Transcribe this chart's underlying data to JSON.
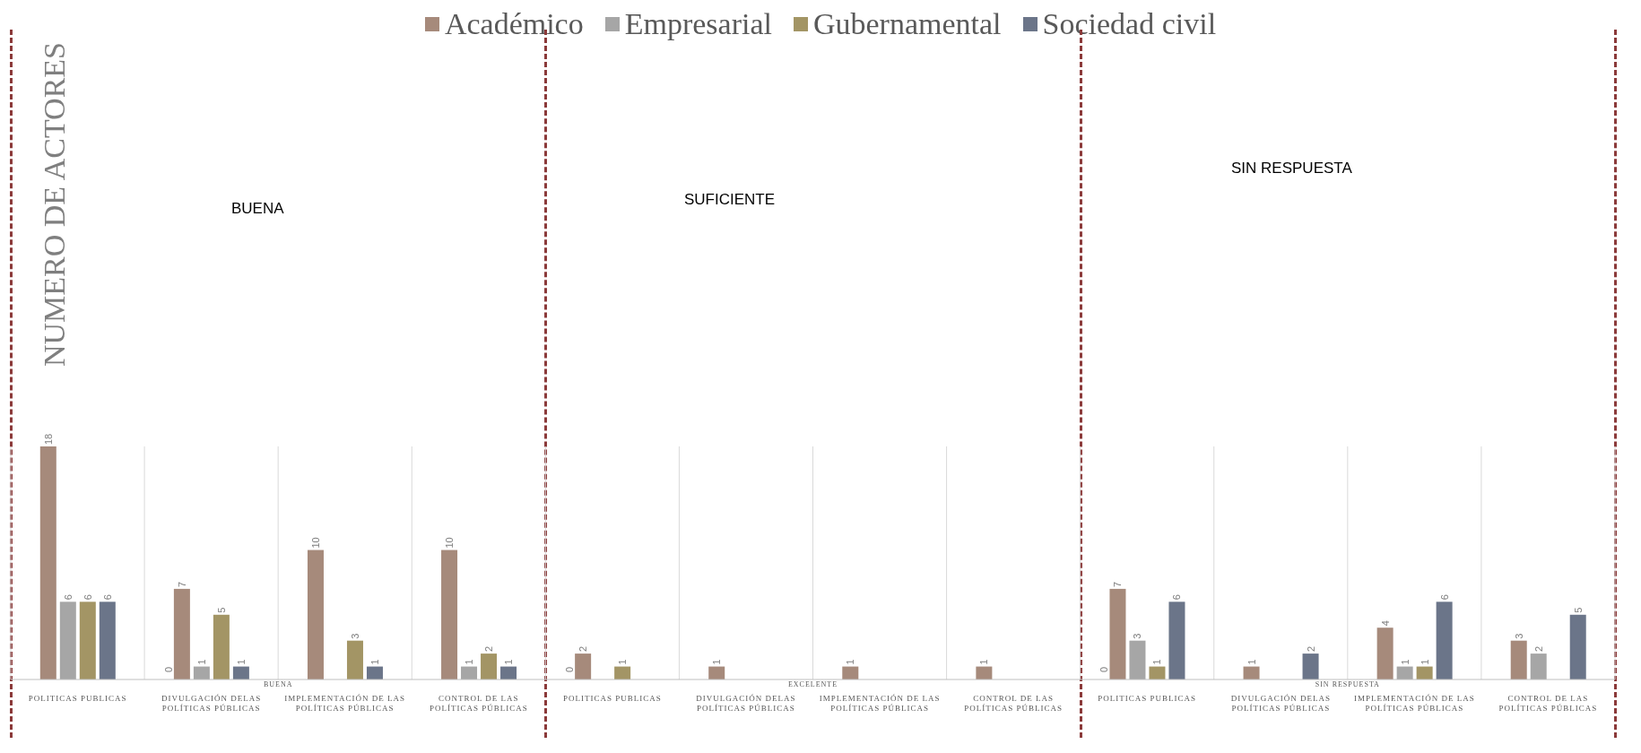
{
  "chart_data": {
    "type": "bar",
    "ylabel": "NUMERO DE ACTORES",
    "categories": [
      "POLITICAS PUBLICAS",
      "DIVULGACIÓN DELAS POLÍTICAS PÚBLICAS",
      "IMPLEMENTACIÓN DE LAS POLÍTICAS PÚBLICAS",
      "CONTROL DE LAS POLÍTICAS PÚBLICAS",
      "POLITICAS PUBLICAS",
      "DIVULGACIÓN DELAS POLÍTICAS PÚBLICAS",
      "IMPLEMENTACIÓN DE LAS POLÍTICAS PÚBLICAS",
      "CONTROL DE LAS POLÍTICAS PÚBLICAS",
      "POLITICAS PUBLICAS",
      "DIVULGACIÓN DELAS POLÍTICAS PÚBLICAS",
      "IMPLEMENTACIÓN DE LAS POLÍTICAS PÚBLICAS",
      "CONTROL DE LAS POLÍTICAS PÚBLICAS"
    ],
    "series": [
      {
        "name": "Académico",
        "color": "#a68a7b",
        "values": [
          18,
          7,
          10,
          10,
          2,
          1,
          1,
          1,
          7,
          1,
          4,
          3
        ]
      },
      {
        "name": "Empresarial",
        "color": "#a6a6a6",
        "values": [
          6,
          1,
          null,
          1,
          null,
          null,
          null,
          null,
          3,
          null,
          1,
          2
        ]
      },
      {
        "name": "Gubernamental",
        "color": "#a39565",
        "values": [
          6,
          5,
          3,
          2,
          1,
          null,
          null,
          null,
          1,
          null,
          1,
          null
        ]
      },
      {
        "name": "Sociedad civil",
        "color": "#6b7589",
        "values": [
          6,
          1,
          1,
          1,
          null,
          null,
          null,
          null,
          6,
          2,
          6,
          5
        ]
      }
    ],
    "annotations": [
      "BUENA",
      "SUFICIENTE",
      "SIN RESPUESTA",
      "BUENA",
      "EXCELENTE",
      "SIN RESPUESTA",
      "0",
      "0",
      "0"
    ],
    "data_labels": true,
    "legend": "top",
    "grid": "x"
  }
}
